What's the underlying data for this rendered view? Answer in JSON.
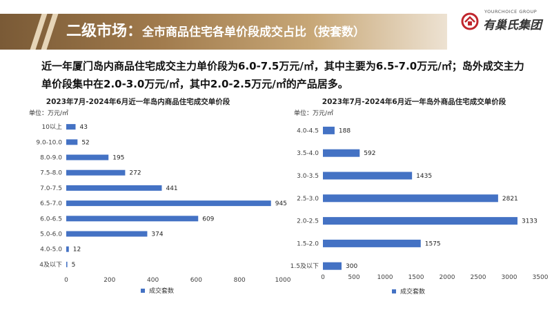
{
  "header": {
    "title": "二级市场：",
    "subtitle": "全市商品住宅各单价段成交占比（按套数）"
  },
  "logo": {
    "en": "YOURCHOICE GROUP",
    "cn": "有巢氏集团"
  },
  "summary": {
    "text": "近一年厦门岛内商品住宅成交主力单价段为6.0-7.5万元/㎡，其中主要为6.5-7.0万元/㎡；岛外成交主力单价段集中在2.0-3.0万元/㎡，其中2.0-2.5万元/㎡的产品居多。"
  },
  "colors": {
    "bar": "#4472c4",
    "header_dark": "#7a5a36",
    "logo_red": "#c0262d"
  },
  "chart_data": [
    {
      "type": "bar",
      "orientation": "horizontal",
      "title": "2023年7月-2024年6月近一年岛内商品住宅成交单价段",
      "unit_label": "单位：万元/㎡",
      "categories": [
        "10以上",
        "9.0-10.0",
        "8.0-9.0",
        "7.5-8.0",
        "7.0-7.5",
        "6.5-7.0",
        "6.0-6.5",
        "5.0-6.0",
        "4.0-5.0",
        "4及以下"
      ],
      "series": [
        {
          "name": "成交套数",
          "values": [
            43,
            52,
            195,
            272,
            441,
            945,
            609,
            374,
            12,
            5
          ]
        }
      ],
      "xlim": [
        0,
        1000
      ],
      "xticks": [
        0,
        200,
        400,
        600,
        800,
        1000
      ],
      "legend": "bottom",
      "grid": false
    },
    {
      "type": "bar",
      "orientation": "horizontal",
      "title": "2023年7月-2024年6月近一年岛外商品住宅成交单价段",
      "unit_label": "单位：万元/㎡",
      "categories": [
        "4.0-4.5",
        "3.5-4.0",
        "3.0-3.5",
        "2.5-3.0",
        "2.0-2.5",
        "1.5-2.0",
        "1.5及以下"
      ],
      "series": [
        {
          "name": "成交套数",
          "values": [
            188,
            592,
            1435,
            2821,
            3133,
            1575,
            300
          ]
        }
      ],
      "xlim": [
        0,
        3500
      ],
      "xticks": [
        0,
        500,
        1000,
        1500,
        2000,
        2500,
        3000,
        3500
      ],
      "legend": "bottom",
      "grid": false
    }
  ]
}
